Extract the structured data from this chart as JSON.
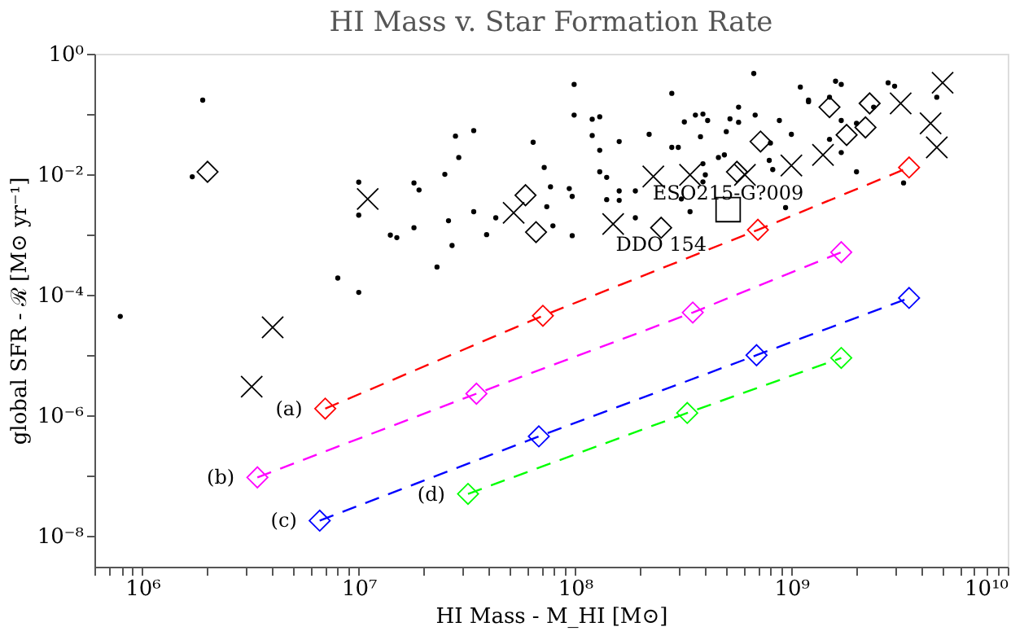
{
  "chart_data": {
    "type": "scatter",
    "title": "HI Mass v. Star Formation Rate",
    "xlabel": "HI Mass - M_HI [M⊙]",
    "ylabel": "global SFR - ℛ [M⊙ yr⁻¹]",
    "log": "xy",
    "grid": false,
    "xlim": [
      600000.0,
      10000000000.0
    ],
    "ylim": [
      3.1e-09,
      1
    ],
    "xticks": [
      {
        "value": 600000.0,
        "label": null
      },
      {
        "value": 700000.0,
        "label": null
      },
      {
        "value": 800000.0,
        "label": null
      },
      {
        "value": 900000.0,
        "label": null
      },
      {
        "value": 1000000.0,
        "label": "10⁶"
      },
      {
        "value": 2000000.0,
        "label": null
      },
      {
        "value": 3000000.0,
        "label": null
      },
      {
        "value": 4000000.0,
        "label": null
      },
      {
        "value": 5000000.0,
        "label": null
      },
      {
        "value": 6000000.0,
        "label": null
      },
      {
        "value": 7000000.0,
        "label": null
      },
      {
        "value": 8000000.0,
        "label": null
      },
      {
        "value": 9000000.0,
        "label": null
      },
      {
        "value": 10000000.0,
        "label": "10⁷"
      },
      {
        "value": 20000000.0,
        "label": null
      },
      {
        "value": 30000000.0,
        "label": null
      },
      {
        "value": 40000000.0,
        "label": null
      },
      {
        "value": 50000000.0,
        "label": null
      },
      {
        "value": 60000000.0,
        "label": null
      },
      {
        "value": 70000000.0,
        "label": null
      },
      {
        "value": 80000000.0,
        "label": null
      },
      {
        "value": 90000000.0,
        "label": null
      },
      {
        "value": 100000000.0,
        "label": "10⁸"
      },
      {
        "value": 200000000.0,
        "label": null
      },
      {
        "value": 300000000.0,
        "label": null
      },
      {
        "value": 400000000.0,
        "label": null
      },
      {
        "value": 500000000.0,
        "label": null
      },
      {
        "value": 600000000.0,
        "label": null
      },
      {
        "value": 700000000.0,
        "label": null
      },
      {
        "value": 800000000.0,
        "label": null
      },
      {
        "value": 900000000.0,
        "label": null
      },
      {
        "value": 1000000000.0,
        "label": "10⁹"
      },
      {
        "value": 2000000000.0,
        "label": null
      },
      {
        "value": 3000000000.0,
        "label": null
      },
      {
        "value": 4000000000.0,
        "label": null
      },
      {
        "value": 5000000000.0,
        "label": null
      },
      {
        "value": 6000000000.0,
        "label": null
      },
      {
        "value": 7000000000.0,
        "label": null
      },
      {
        "value": 8000000000.0,
        "label": null
      },
      {
        "value": 9000000000.0,
        "label": null
      },
      {
        "value": 10000000000.0,
        "label": "10¹⁰"
      }
    ],
    "yticks": [
      {
        "value": 1,
        "label": "10⁰"
      },
      {
        "value": 0.1,
        "label": null
      },
      {
        "value": 0.01,
        "label": "10⁻²"
      },
      {
        "value": 0.001,
        "label": null
      },
      {
        "value": 0.0001,
        "label": "10⁻⁴"
      },
      {
        "value": 1e-05,
        "label": null
      },
      {
        "value": 1e-06,
        "label": "10⁻⁶"
      },
      {
        "value": 1e-07,
        "label": null
      },
      {
        "value": 1e-08,
        "label": "10⁻⁸"
      }
    ],
    "series": [
      {
        "marker": "circle",
        "color": "#000000",
        "x": [
          1900000.0,
          1700000.0,
          790000.0,
          10000000.0,
          10000000.0,
          8000000.0,
          10000000.0,
          14000000.0,
          15000000.0,
          18000000.0,
          19000000.0,
          18000000.0,
          23000000.0,
          25000000.0,
          28000000.0,
          29000000.0,
          34000000.0,
          26000000.0,
          27000000.0,
          34000000.0,
          39000000.0,
          43000000.0,
          64000000.0,
          72000000.0,
          77000000.0,
          74000000.0,
          79000000.0,
          99000000.0,
          99000000.0,
          94000000.0,
          97000000.0,
          97000000.0,
          120000000.0,
          130000000.0,
          120000000.0,
          130000000.0,
          160000000.0,
          130000000.0,
          140000000.0,
          160000000.0,
          140000000.0,
          160000000.0,
          190000000.0,
          190000000.0,
          280000000.0,
          220000000.0,
          280000000.0,
          300000000.0,
          320000000.0,
          360000000.0,
          390000000.0,
          410000000.0,
          380000000.0,
          500000000.0,
          520000000.0,
          570000000.0,
          570000000.0,
          670000000.0,
          680000000.0,
          800000000.0,
          880000000.0,
          1000000000.0,
          1100000000.0,
          1200000000.0,
          1200000000.0,
          1600000000.0,
          1700000000.0,
          1500000000.0,
          1700000000.0,
          1500000000.0,
          1700000000.0,
          2000000000.0,
          2000000000.0,
          2400000000.0,
          2800000000.0,
          3000000000.0,
          4700000000.0,
          460000000.0,
          490000000.0,
          400000000.0,
          390000000.0,
          340000000.0,
          940000000.0,
          820000000.0,
          790000000.0,
          310000000.0,
          390000000.0,
          3300000000.0
        ],
        "values": [
          0.17,
          0.0091,
          4.4e-05,
          0.0074,
          0.0021,
          0.00019,
          0.00011,
          0.00098,
          0.00089,
          0.0072,
          0.0055,
          0.0013,
          0.00029,
          0.01,
          0.043,
          0.019,
          0.053,
          0.0017,
          0.00066,
          0.0024,
          0.001,
          0.0019,
          0.034,
          0.013,
          0.0062,
          0.0029,
          0.0014,
          0.31,
          0.096,
          0.0058,
          0.0043,
          0.00096,
          0.082,
          0.09,
          0.044,
          0.025,
          0.035,
          0.011,
          0.0089,
          0.0053,
          0.0038,
          0.0037,
          0.0053,
          0.0019,
          0.22,
          0.046,
          0.028,
          0.028,
          0.074,
          0.096,
          0.1,
          0.078,
          0.042,
          0.051,
          0.083,
          0.13,
          0.073,
          0.47,
          0.096,
          0.033,
          0.078,
          0.046,
          0.28,
          0.17,
          0.16,
          0.35,
          0.31,
          0.19,
          0.078,
          0.038,
          0.023,
          0.011,
          0.07,
          0.13,
          0.33,
          0.29,
          0.19,
          0.019,
          0.021,
          0.0098,
          0.0075,
          0.0024,
          0.0028,
          0.012,
          0.017,
          0.0039,
          0.015,
          0.0072
        ]
      },
      {
        "marker": "diamond",
        "color": "#000000",
        "x": [
          2000000.0,
          59000000.0,
          66000000.0,
          720000000.0,
          250000000.0,
          1500000000.0,
          2300000000.0,
          1800000000.0,
          2200000000.0,
          560000000.0
        ],
        "values": [
          0.011,
          0.0045,
          0.0011,
          0.035,
          0.0013,
          0.13,
          0.15,
          0.045,
          0.06,
          0.011
        ]
      },
      {
        "marker": "cross",
        "color": "#000000",
        "x": [
          5000000000.0,
          4400000000.0,
          4700000000.0,
          3200000000.0,
          1400000000.0,
          1000000000.0,
          230000000.0,
          340000000.0,
          610000000.0,
          150000000.0,
          11000000.0,
          52000000.0,
          4000000.0,
          3200000.0
        ],
        "values": [
          0.33,
          0.07,
          0.028,
          0.15,
          0.021,
          0.014,
          0.0092,
          0.0098,
          0.0098,
          0.0015,
          0.0039,
          0.0023,
          2.9e-05,
          3e-06
        ]
      },
      {
        "marker": "square",
        "color": "#000000",
        "x": [
          510000000.0
        ],
        "values": [
          0.0026
        ]
      },
      {
        "type": "line",
        "marker": "diamond",
        "line_style": "dashed",
        "color": "#ff0000",
        "x": [
          7000000.0,
          71000000.0,
          700000000.0,
          3500000000.0
        ],
        "values": [
          1.3e-06,
          4.5e-05,
          0.0012,
          0.013
        ]
      },
      {
        "type": "line",
        "marker": "diamond",
        "line_style": "dashed",
        "color": "#ff00ff",
        "x": [
          3400000.0,
          35000000.0,
          350000000.0,
          1700000000.0
        ],
        "values": [
          9.4e-08,
          2.3e-06,
          5.1e-05,
          0.00051
        ]
      },
      {
        "type": "line",
        "marker": "diamond",
        "line_style": "dashed",
        "color": "#0000ff",
        "x": [
          6600000.0,
          68000000.0,
          690000000.0,
          3500000000.0
        ],
        "values": [
          1.8e-08,
          4.5e-07,
          1e-05,
          8.9e-05
        ]
      },
      {
        "type": "line",
        "marker": "diamond",
        "line_style": "dashed",
        "color": "#00ff00",
        "x": [
          32000000.0,
          330000000.0,
          1700000000.0
        ],
        "values": [
          5e-08,
          1.1e-06,
          9e-06
        ]
      }
    ],
    "annotations": [
      {
        "text": "(a)",
        "x": 7000000.0,
        "y": 1.3e-06
      },
      {
        "text": "(b)",
        "x": 3400000.0,
        "y": 9.4e-08
      },
      {
        "text": "(c)",
        "x": 6600000.0,
        "y": 1.8e-08
      },
      {
        "text": "(d)",
        "x": 32000000.0,
        "y": 5e-08
      },
      {
        "text": "ESO215-G?009",
        "x": 510000000.0,
        "y": 0.0049
      },
      {
        "text": "DDO 154",
        "x": 250000000.0,
        "y": 0.0007
      }
    ]
  }
}
